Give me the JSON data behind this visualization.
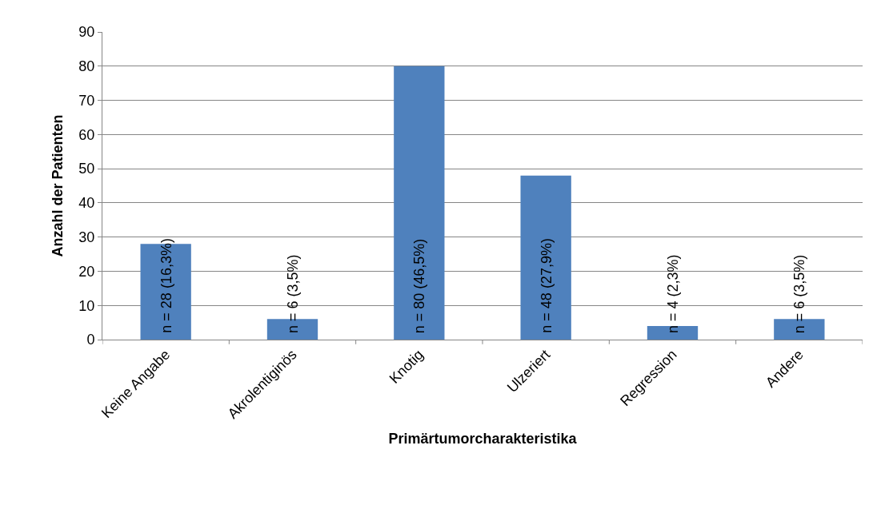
{
  "chart_data": {
    "type": "bar",
    "categories": [
      "Keine Angabe",
      "Akrolentiginös",
      "Knotig",
      "Ulzeriert",
      "Regression",
      "Andere"
    ],
    "values": [
      28,
      6,
      80,
      48,
      4,
      6
    ],
    "value_labels": [
      "n = 28 (16,3%)",
      "n = 6 (3,5%)",
      "n = 80 (46,5%)",
      "n = 48 (27,9%)",
      "n = 4 (2,3%)",
      "n = 6 (3,5%)"
    ],
    "color": "#4f81bd",
    "xlabel": "Primärtumorcharakteristika",
    "ylabel": "Anzahl der Patienten",
    "ylim": [
      0,
      90
    ],
    "yticks": [
      0,
      10,
      20,
      30,
      40,
      50,
      60,
      70,
      80,
      90
    ],
    "grid": "y"
  }
}
